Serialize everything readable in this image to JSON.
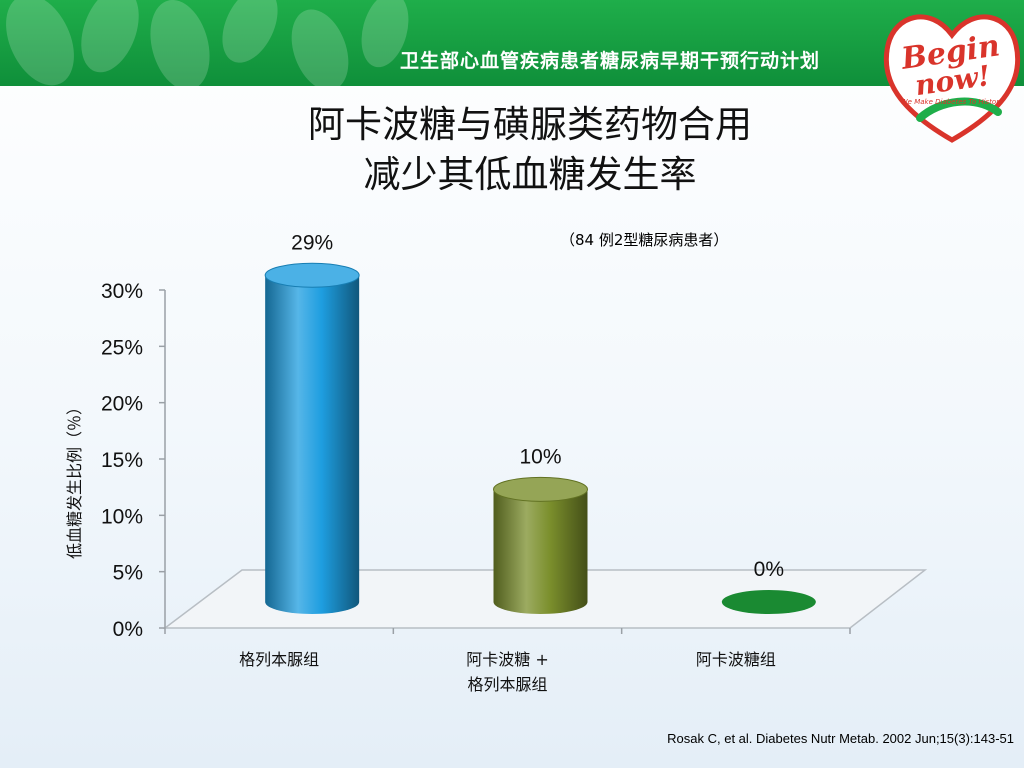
{
  "header": {
    "title": "卫生部心血管疾病患者糖尿病早期干预行动计划"
  },
  "logo": {
    "line1": "Begin",
    "line2": "now!",
    "tagline": "We Make Diabetes To History"
  },
  "slide": {
    "title_line1": "阿卡波糖与磺脲类药物合用",
    "title_line2": "减少其低血糖发生率",
    "subtitle": "（84 例2型糖尿病患者）",
    "citation": "Rosak C, et al. Diabetes Nutr Metab. 2002 Jun;15(3):143-51"
  },
  "chart_data": {
    "type": "bar",
    "style": "3d-cylinder",
    "categories": [
      [
        "格列本脲组"
      ],
      [
        "阿卡波糖 +",
        "格列本脲组"
      ],
      [
        "阿卡波糖组"
      ]
    ],
    "values": [
      29,
      10,
      0
    ],
    "data_labels": [
      "29%",
      "10%",
      "0%"
    ],
    "colors": [
      "#1e9ee0",
      "#7b8f2c",
      "#1a8a32"
    ],
    "ylabel": "低血糖发生比例（％）",
    "ylim": [
      0,
      30
    ],
    "yticks": [
      0,
      5,
      10,
      15,
      20,
      25,
      30
    ],
    "ytick_labels": [
      "0%",
      "5%",
      "10%",
      "15%",
      "20%",
      "25%",
      "30%"
    ],
    "grid": false,
    "legend": "none"
  }
}
